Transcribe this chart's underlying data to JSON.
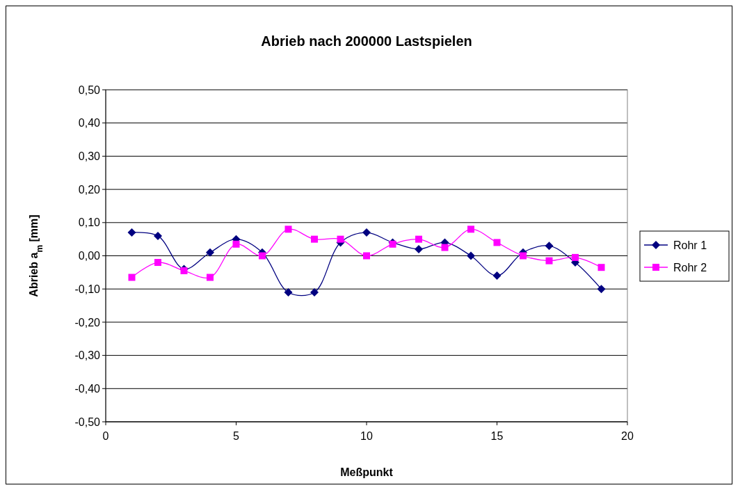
{
  "chart_data": {
    "type": "line",
    "title": "Abrieb nach 200000 Lastspielen",
    "xlabel": "Meßpunkt",
    "ylabel": "Abrieb a$_{m}$ [mm]",
    "x": [
      1,
      2,
      3,
      4,
      5,
      6,
      7,
      8,
      9,
      10,
      11,
      12,
      13,
      14,
      15,
      16,
      17,
      18,
      19
    ],
    "series": [
      {
        "name": "Rohr 1",
        "color": "#000080",
        "marker": "diamond",
        "values": [
          0.07,
          0.06,
          -0.04,
          0.01,
          0.05,
          0.01,
          -0.11,
          -0.11,
          0.04,
          0.07,
          0.04,
          0.02,
          0.04,
          0,
          -0.06,
          0.01,
          0.03,
          -0.02,
          -0.1
        ]
      },
      {
        "name": "Rohr 2",
        "color": "#ff00ff",
        "marker": "square",
        "values": [
          -0.065,
          -0.02,
          -0.045,
          -0.065,
          0.035,
          0,
          0.08,
          0.05,
          0.05,
          0,
          0.035,
          0.05,
          0.025,
          0.08,
          0.04,
          0,
          -0.015,
          -0.005,
          -0.035
        ]
      }
    ],
    "xlim": [
      0,
      20
    ],
    "xticks": [
      0,
      5,
      10,
      15,
      20
    ],
    "ylim": [
      -0.5,
      0.5
    ],
    "yticks": [
      {
        "value": -0.5,
        "label": "-0,50"
      },
      {
        "value": -0.4,
        "label": "-0,40"
      },
      {
        "value": -0.3,
        "label": "-0,30"
      },
      {
        "value": -0.2,
        "label": "-0,20"
      },
      {
        "value": -0.1,
        "label": "-0,10"
      },
      {
        "value": 0,
        "label": "0,00"
      },
      {
        "value": 0.1,
        "label": "0,10"
      },
      {
        "value": 0.2,
        "label": "0,20"
      },
      {
        "value": 0.3,
        "label": "0,30"
      },
      {
        "value": 0.4,
        "label": "0,40"
      },
      {
        "value": 0.5,
        "label": "0,50"
      }
    ],
    "grid": "y",
    "legend": "right",
    "line_style": "solid"
  }
}
